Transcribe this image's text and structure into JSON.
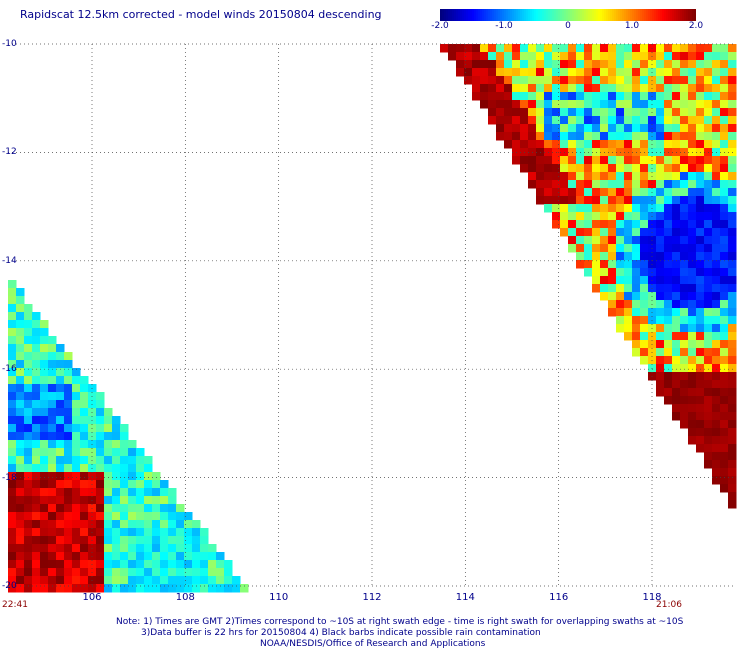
{
  "title": "Rapidscat 12.5km corrected - model winds 20150804 descending",
  "colorbar": {
    "min": -2.0,
    "max": 2.0,
    "ticks": [
      "-2.0",
      "-1.0",
      "0",
      "1.0",
      "2.0"
    ],
    "tick_values": [
      -2.0,
      -1.0,
      0,
      1.0,
      2.0
    ],
    "colors": [
      "#00007f",
      "#0000ff",
      "#007fff",
      "#00ffff",
      "#7fff7f",
      "#ffff00",
      "#ff7f00",
      "#ff0000",
      "#7f0000"
    ]
  },
  "map": {
    "lat_labels": [
      "-10",
      "-12",
      "-14",
      "-16",
      "-18",
      "-20"
    ],
    "lon_labels": [
      "106",
      "108",
      "110",
      "112",
      "114",
      "116",
      "118"
    ],
    "lat_range": [
      -20,
      -10
    ],
    "lon_range": [
      104.2,
      119.8
    ],
    "time_left": "22:41",
    "time_right": "21:06"
  },
  "notes": [
    "Note: 1) Times are GMT 2)Times correspond to ~10S at right swath edge - time is right swath for overlapping swaths at ~10S",
    "3)Data buffer is 22 hrs for 20150804 4) Black barbs indicate possible rain contamination",
    "NOAA/NESDIS/Office of Research and Applications"
  ]
}
